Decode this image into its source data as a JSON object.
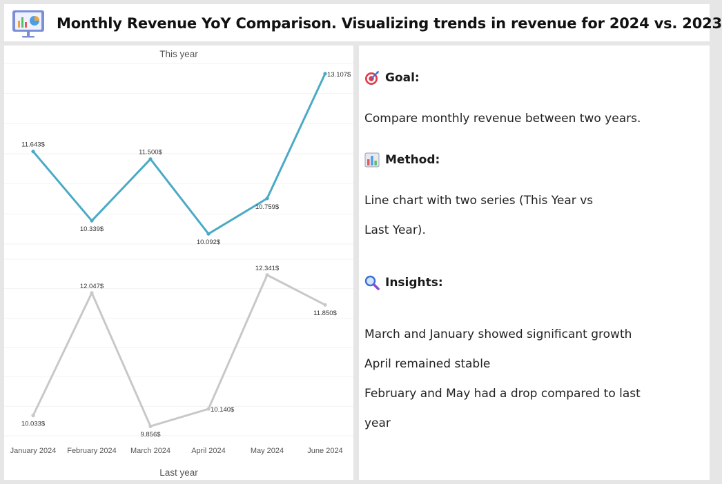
{
  "header": {
    "title": "Monthly Revenue YoY Comparison. Visualizing trends in revenue for 2024 vs. 2023",
    "logo_icon": "presentation-chart-icon"
  },
  "chart_data": [
    {
      "type": "line",
      "title": "This year",
      "categories": [
        "January 2024",
        "February 2024",
        "March 2024",
        "April 2024",
        "May 2024",
        "June 2024"
      ],
      "values": [
        11643,
        10339,
        11500,
        10092,
        10759,
        13107
      ],
      "data_labels": [
        "11.643$",
        "10.339$",
        "11.500$",
        "10.092$",
        "10.759$",
        "13.107$"
      ],
      "ylim": [
        9900,
        13300
      ],
      "color": "#4aaac6",
      "grid": true
    },
    {
      "type": "line",
      "title": "Last year",
      "categories": [
        "January 2024",
        "February 2024",
        "March 2024",
        "April 2024",
        "May 2024",
        "June 2024"
      ],
      "values": [
        10033,
        12047,
        9856,
        10140,
        12341,
        11850
      ],
      "data_labels": [
        "10.033$",
        "12.047$",
        "9.856$",
        "10.140$",
        "12.341$",
        "11.850$"
      ],
      "ylim": [
        9700,
        12600
      ],
      "color": "#c8c8c8",
      "grid": true
    }
  ],
  "panel": {
    "goal_heading": "Goal:",
    "goal_icon": "target-icon",
    "goal_text": "Compare monthly revenue between two years.",
    "method_heading": "Method:",
    "method_icon": "bar-chart-icon",
    "method_line1": "Line chart with two series (This Year vs",
    "method_line2": "Last Year).",
    "insights_heading": "Insights:",
    "insights_icon": "magnifier-icon",
    "insight1": "March and January showed significant growth",
    "insight2": "April remained stable",
    "insight3": "February and May had a drop compared to last",
    "insight3_cont": "year"
  }
}
